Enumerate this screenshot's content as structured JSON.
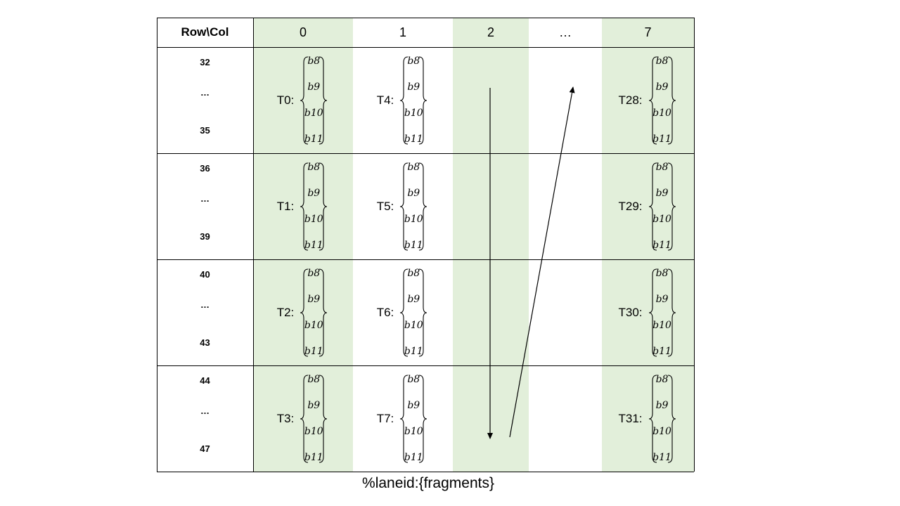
{
  "colors": {
    "band": "#e2efda",
    "line": "#000000"
  },
  "header": {
    "corner": "Row\\Col",
    "columns": [
      "0",
      "1",
      "2",
      "…",
      "7"
    ]
  },
  "rows": [
    {
      "first": "32",
      "dots": "…",
      "last": "35",
      "cells": [
        {
          "col": 0,
          "lane": "T0:"
        },
        {
          "col": 1,
          "lane": "T4:"
        },
        {
          "col": 4,
          "lane": "T28:"
        }
      ]
    },
    {
      "first": "36",
      "dots": "…",
      "last": "39",
      "cells": [
        {
          "col": 0,
          "lane": "T1:"
        },
        {
          "col": 1,
          "lane": "T5:"
        },
        {
          "col": 4,
          "lane": "T29:"
        }
      ]
    },
    {
      "first": "40",
      "dots": "…",
      "last": "43",
      "cells": [
        {
          "col": 0,
          "lane": "T2:"
        },
        {
          "col": 1,
          "lane": "T6:"
        },
        {
          "col": 4,
          "lane": "T30:"
        }
      ]
    },
    {
      "first": "44",
      "dots": "…",
      "last": "47",
      "cells": [
        {
          "col": 0,
          "lane": "T3:"
        },
        {
          "col": 1,
          "lane": "T7:"
        },
        {
          "col": 4,
          "lane": "T31:"
        }
      ]
    }
  ],
  "fragments": [
    "b8",
    "b9",
    "b10",
    "b11"
  ],
  "arrows": [
    {
      "direction": "down",
      "column": "2"
    },
    {
      "direction": "up",
      "column": "…"
    }
  ],
  "caption": "%laneid:{fragments}"
}
